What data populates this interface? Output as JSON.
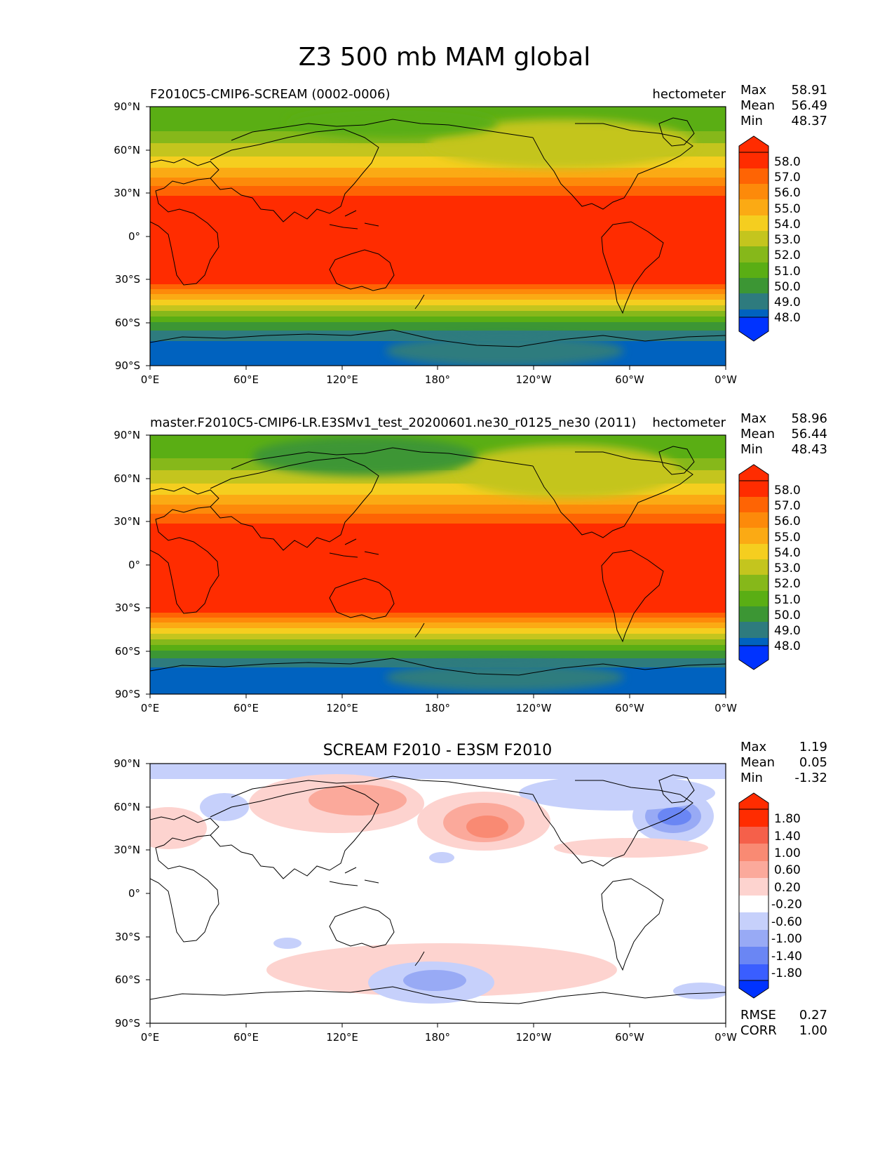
{
  "title": "Z3 500 mb MAM global",
  "panels": [
    {
      "left_title": "F2010C5-CMIP6-SCREAM (0002-0006)",
      "right_title": "hectometer",
      "center_title": "",
      "stats": [
        {
          "label": "Max",
          "value": "58.91"
        },
        {
          "label": "Mean",
          "value": "56.49"
        },
        {
          "label": "Min",
          "value": "48.37"
        }
      ],
      "colorbar": [
        "58.0",
        "57.0",
        "56.0",
        "55.0",
        "54.0",
        "53.0",
        "52.0",
        "51.0",
        "50.0",
        "49.0",
        "48.0"
      ],
      "footer_stats": []
    },
    {
      "left_title": "master.F2010C5-CMIP6-LR.E3SMv1_test_20200601.ne30_r0125_ne30 (2011)",
      "right_title": "hectometer",
      "center_title": "",
      "stats": [
        {
          "label": "Max",
          "value": "58.96"
        },
        {
          "label": "Mean",
          "value": "56.44"
        },
        {
          "label": "Min",
          "value": "48.43"
        }
      ],
      "colorbar": [
        "58.0",
        "57.0",
        "56.0",
        "55.0",
        "54.0",
        "53.0",
        "52.0",
        "51.0",
        "50.0",
        "49.0",
        "48.0"
      ],
      "footer_stats": []
    },
    {
      "left_title": "",
      "right_title": "",
      "center_title": "SCREAM F2010 - E3SM F2010",
      "stats": [
        {
          "label": "Max",
          "value": "1.19"
        },
        {
          "label": "Mean",
          "value": "0.05"
        },
        {
          "label": "Min",
          "value": "-1.32"
        }
      ],
      "colorbar": [
        "1.80",
        "1.40",
        "1.00",
        "0.60",
        "0.20",
        "-0.20",
        "-0.60",
        "-1.00",
        "-1.40",
        "-1.80"
      ],
      "footer_stats": [
        {
          "label": "RMSE",
          "value": "0.27"
        },
        {
          "label": "CORR",
          "value": "1.00"
        }
      ]
    }
  ],
  "axes": {
    "lat_ticks": [
      "90°N",
      "60°N",
      "30°N",
      "0°",
      "30°S",
      "60°S",
      "90°S"
    ],
    "lon_ticks": [
      "0°E",
      "60°E",
      "120°E",
      "180°",
      "120°W",
      "60°W",
      "0°W"
    ]
  },
  "colors": {
    "field_scale": [
      "#0033ff",
      "#0062bf",
      "#2e7b7e",
      "#3c9634",
      "#5aae14",
      "#86b81a",
      "#c4c51e",
      "#f5ce1f",
      "#fbaa14",
      "#fd8a0a",
      "#fe6404",
      "#ff2c00"
    ],
    "diff_scale": [
      "#0033ff",
      "#3a5eff",
      "#6a86f4",
      "#98aaf5",
      "#c6d0fb",
      "#ffffff",
      "#fdd3cf",
      "#fba99b",
      "#f98a73",
      "#f5604a",
      "#ff2c00"
    ]
  },
  "chart_data": [
    {
      "type": "heatmap",
      "title": "F2010C5-CMIP6-SCREAM (0002-0006)",
      "units": "hectometer",
      "ylim": [
        -90,
        90
      ],
      "xlim": [
        0,
        360
      ],
      "lat": [
        -90,
        -60,
        -30,
        0,
        30,
        60,
        90
      ],
      "zonal_mean": [
        48.5,
        51.6,
        56.2,
        58.6,
        57.6,
        53.2,
        52.1
      ],
      "levels": [
        48,
        49,
        50,
        51,
        52,
        53,
        54,
        55,
        56,
        57,
        58
      ],
      "max": 58.91,
      "mean": 56.49,
      "min": 48.37
    },
    {
      "type": "heatmap",
      "title": "master.F2010C5-CMIP6-LR.E3SMv1_test_20200601.ne30_r0125_ne30 (2011)",
      "units": "hectometer",
      "ylim": [
        -90,
        90
      ],
      "xlim": [
        0,
        360
      ],
      "lat": [
        -90,
        -60,
        -30,
        0,
        30,
        60,
        90
      ],
      "zonal_mean": [
        48.4,
        51.7,
        56.2,
        58.6,
        57.4,
        53.0,
        51.9
      ],
      "levels": [
        48,
        49,
        50,
        51,
        52,
        53,
        54,
        55,
        56,
        57,
        58
      ],
      "max": 58.96,
      "mean": 56.44,
      "min": 48.43
    },
    {
      "type": "heatmap",
      "title": "SCREAM F2010 - E3SM F2010",
      "ylim": [
        -90,
        90
      ],
      "xlim": [
        0,
        360
      ],
      "levels": [
        -1.8,
        -1.4,
        -1.0,
        -0.6,
        -0.2,
        0.2,
        0.6,
        1.0,
        1.4,
        1.8
      ],
      "max": 1.19,
      "mean": 0.05,
      "min": -1.32,
      "rmse": 0.27,
      "corr": 1.0
    }
  ]
}
